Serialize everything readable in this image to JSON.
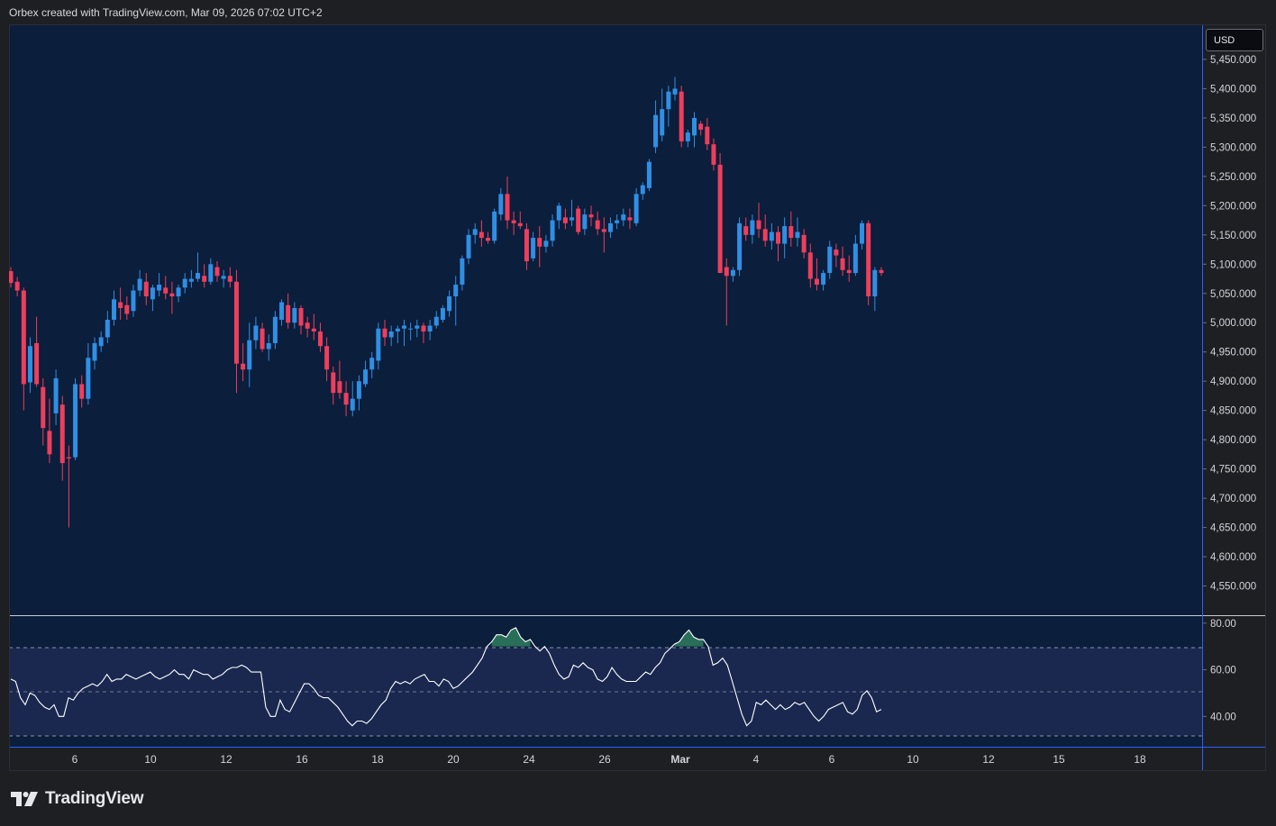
{
  "header": {
    "attribution": "Orbex created with TradingView.com, Mar 09, 2026 07:02 UTC+2"
  },
  "currency": "USD",
  "footer": {
    "brand_name": "TradingView",
    "logo_icon": "tradingview-logo-icon"
  },
  "colors": {
    "background": "#1e1f22",
    "plot_background": "#0b1e3b",
    "rsi_band": "#1a2850",
    "up_candle": "#2f8fe4",
    "down_candle": "#ef3e5c",
    "rsi_line": "#ffffff",
    "rsi_overbought_fill": "#2f7d5e",
    "text": "#d1d4dc",
    "axis_line": "#2962ff"
  },
  "chart_data": [
    {
      "type": "candlestick",
      "title": "",
      "currency": "USD",
      "ylim": [
        4500,
        5510
      ],
      "y_ticks": [
        "5,450.000",
        "5,400.000",
        "5,350.000",
        "5,300.000",
        "5,250.000",
        "5,200.000",
        "5,150.000",
        "5,100.000",
        "5,050.000",
        "5,000.000",
        "4,950.000",
        "4,900.000",
        "4,850.000",
        "4,800.000",
        "4,750.000",
        "4,700.000",
        "4,650.000",
        "4,600.000",
        "4,550.000"
      ],
      "x_ticks": [
        "6",
        "10",
        "12",
        "16",
        "18",
        "20",
        "24",
        "26",
        "Mar",
        "4",
        "6",
        "10",
        "12",
        "15",
        "18"
      ],
      "ohlc": [
        [
          5088,
          5095,
          5060,
          5068
        ],
        [
          5070,
          5078,
          5045,
          5055
        ],
        [
          5055,
          5060,
          4850,
          4895
        ],
        [
          4898,
          4975,
          4880,
          4960
        ],
        [
          4965,
          5010,
          4890,
          4895
        ],
        [
          4890,
          4905,
          4790,
          4820
        ],
        [
          4815,
          4870,
          4760,
          4775
        ],
        [
          4845,
          4920,
          4825,
          4905
        ],
        [
          4860,
          4875,
          4730,
          4760
        ],
        [
          4770,
          4790,
          4650,
          4768
        ],
        [
          4770,
          4905,
          4765,
          4895
        ],
        [
          4895,
          4910,
          4855,
          4870
        ],
        [
          4870,
          4965,
          4860,
          4940
        ],
        [
          4935,
          4975,
          4920,
          4965
        ],
        [
          4960,
          4985,
          4950,
          4975
        ],
        [
          4975,
          5020,
          4965,
          5005
        ],
        [
          5005,
          5055,
          4995,
          5040
        ],
        [
          5035,
          5060,
          5005,
          5025
        ],
        [
          5030,
          5045,
          5005,
          5015
        ],
        [
          5020,
          5065,
          5010,
          5055
        ],
        [
          5055,
          5090,
          5045,
          5075
        ],
        [
          5070,
          5085,
          5030,
          5045
        ],
        [
          5040,
          5065,
          5020,
          5060
        ],
        [
          5055,
          5085,
          5045,
          5065
        ],
        [
          5060,
          5080,
          5040,
          5050
        ],
        [
          5050,
          5070,
          5015,
          5045
        ],
        [
          5045,
          5065,
          5035,
          5060
        ],
        [
          5060,
          5085,
          5050,
          5075
        ],
        [
          5070,
          5090,
          5060,
          5075
        ],
        [
          5075,
          5120,
          5070,
          5085
        ],
        [
          5080,
          5100,
          5060,
          5070
        ],
        [
          5070,
          5110,
          5065,
          5100
        ],
        [
          5095,
          5105,
          5070,
          5080
        ],
        [
          5075,
          5090,
          5060,
          5080
        ],
        [
          5080,
          5095,
          5060,
          5070
        ],
        [
          5070,
          5090,
          4880,
          4930
        ],
        [
          4930,
          4965,
          4900,
          4920
        ],
        [
          4920,
          5000,
          4890,
          4970
        ],
        [
          4970,
          5010,
          4955,
          4995
        ],
        [
          4990,
          5000,
          4950,
          4955
        ],
        [
          4955,
          4980,
          4935,
          4965
        ],
        [
          4965,
          5020,
          4955,
          5010
        ],
        [
          5005,
          5040,
          4995,
          5035
        ],
        [
          5030,
          5050,
          4990,
          5000
        ],
        [
          5000,
          5035,
          4990,
          5025
        ],
        [
          5025,
          5030,
          4980,
          4995
        ],
        [
          5000,
          5010,
          4975,
          4990
        ],
        [
          4990,
          5015,
          4970,
          4985
        ],
        [
          4985,
          5000,
          4950,
          4960
        ],
        [
          4960,
          4975,
          4900,
          4920
        ],
        [
          4915,
          4925,
          4860,
          4880
        ],
        [
          4900,
          4935,
          4870,
          4880
        ],
        [
          4880,
          4900,
          4840,
          4860
        ],
        [
          4850,
          4900,
          4840,
          4870
        ],
        [
          4870,
          4910,
          4850,
          4900
        ],
        [
          4895,
          4935,
          4890,
          4920
        ],
        [
          4920,
          4950,
          4905,
          4940
        ],
        [
          4935,
          5000,
          4920,
          4990
        ],
        [
          4990,
          5005,
          4960,
          4975
        ],
        [
          4975,
          4995,
          4960,
          4985
        ],
        [
          4985,
          4995,
          4965,
          4990
        ],
        [
          4990,
          5005,
          4960,
          4995
        ],
        [
          4990,
          5000,
          4970,
          4990
        ],
        [
          4990,
          5005,
          4975,
          4995
        ],
        [
          4995,
          5000,
          4965,
          4985
        ],
        [
          4985,
          5005,
          4970,
          4995
        ],
        [
          4995,
          5020,
          4990,
          5010
        ],
        [
          5005,
          5030,
          5000,
          5025
        ],
        [
          5020,
          5055,
          5010,
          5045
        ],
        [
          5045,
          5080,
          4995,
          5065
        ],
        [
          5065,
          5115,
          5055,
          5110
        ],
        [
          5110,
          5160,
          5100,
          5150
        ],
        [
          5150,
          5170,
          5135,
          5160
        ],
        [
          5155,
          5175,
          5130,
          5145
        ],
        [
          5145,
          5155,
          5135,
          5140
        ],
        [
          5140,
          5195,
          5135,
          5190
        ],
        [
          5185,
          5230,
          5175,
          5220
        ],
        [
          5220,
          5250,
          5160,
          5175
        ],
        [
          5175,
          5190,
          5150,
          5170
        ],
        [
          5170,
          5190,
          5160,
          5165
        ],
        [
          5160,
          5170,
          5090,
          5105
        ],
        [
          5110,
          5155,
          5105,
          5145
        ],
        [
          5145,
          5165,
          5095,
          5130
        ],
        [
          5130,
          5150,
          5120,
          5140
        ],
        [
          5140,
          5185,
          5130,
          5175
        ],
        [
          5175,
          5205,
          5160,
          5200
        ],
        [
          5180,
          5195,
          5160,
          5170
        ],
        [
          5175,
          5210,
          5165,
          5180
        ],
        [
          5195,
          5200,
          5150,
          5155
        ],
        [
          5160,
          5195,
          5150,
          5185
        ],
        [
          5185,
          5200,
          5165,
          5180
        ],
        [
          5175,
          5190,
          5150,
          5160
        ],
        [
          5160,
          5180,
          5120,
          5155
        ],
        [
          5155,
          5180,
          5145,
          5170
        ],
        [
          5170,
          5185,
          5160,
          5175
        ],
        [
          5175,
          5195,
          5165,
          5185
        ],
        [
          5180,
          5195,
          5160,
          5175
        ],
        [
          5170,
          5230,
          5165,
          5220
        ],
        [
          5220,
          5240,
          5210,
          5235
        ],
        [
          5230,
          5280,
          5225,
          5275
        ],
        [
          5300,
          5380,
          5290,
          5355
        ],
        [
          5320,
          5400,
          5310,
          5365
        ],
        [
          5365,
          5405,
          5335,
          5395
        ],
        [
          5390,
          5420,
          5380,
          5400
        ],
        [
          5395,
          5405,
          5300,
          5310
        ],
        [
          5310,
          5330,
          5300,
          5325
        ],
        [
          5320,
          5360,
          5300,
          5350
        ],
        [
          5340,
          5345,
          5320,
          5330
        ],
        [
          5335,
          5350,
          5295,
          5305
        ],
        [
          5305,
          5315,
          5260,
          5270
        ],
        [
          5270,
          5290,
          5095,
          5085
        ],
        [
          5095,
          5110,
          4995,
          5080
        ],
        [
          5080,
          5095,
          5070,
          5090
        ],
        [
          5090,
          5180,
          5080,
          5170
        ],
        [
          5165,
          5180,
          5140,
          5150
        ],
        [
          5150,
          5185,
          5135,
          5175
        ],
        [
          5175,
          5205,
          5145,
          5160
        ],
        [
          5160,
          5185,
          5130,
          5140
        ],
        [
          5140,
          5170,
          5125,
          5155
        ],
        [
          5155,
          5165,
          5105,
          5135
        ],
        [
          5135,
          5180,
          5110,
          5165
        ],
        [
          5165,
          5190,
          5130,
          5145
        ],
        [
          5145,
          5180,
          5130,
          5155
        ],
        [
          5150,
          5160,
          5110,
          5120
        ],
        [
          5120,
          5135,
          5060,
          5075
        ],
        [
          5075,
          5110,
          5055,
          5065
        ],
        [
          5065,
          5090,
          5055,
          5085
        ],
        [
          5085,
          5140,
          5075,
          5130
        ],
        [
          5125,
          5135,
          5095,
          5115
        ],
        [
          5110,
          5130,
          5080,
          5090
        ],
        [
          5090,
          5115,
          5070,
          5085
        ],
        [
          5085,
          5150,
          5080,
          5135
        ],
        [
          5135,
          5175,
          5125,
          5170
        ],
        [
          5170,
          5175,
          5030,
          5045
        ],
        [
          5045,
          5095,
          5020,
          5090
        ],
        [
          5090,
          5095,
          5080,
          5085
        ]
      ]
    },
    {
      "type": "line",
      "name": "",
      "ylim": [
        27,
        83
      ],
      "y_ticks": [
        "80.00",
        "60.00",
        "40.00"
      ],
      "bands": {
        "upper": 70,
        "middle": 50,
        "lower": 30
      },
      "values": [
        56,
        55,
        48,
        45,
        50,
        49,
        46,
        44,
        43,
        45,
        40,
        40,
        48,
        47,
        50,
        52,
        53,
        54,
        53,
        55,
        58,
        55,
        56,
        56,
        58,
        57,
        56,
        57,
        58,
        59,
        57,
        56,
        57,
        58,
        60,
        58,
        58,
        56,
        60,
        59,
        58,
        58,
        56,
        57,
        58,
        60,
        61,
        61,
        62,
        61,
        59,
        59,
        59,
        44,
        40,
        40,
        47,
        43,
        42,
        46,
        50,
        54,
        54,
        52,
        49,
        48,
        48,
        46,
        44,
        41,
        38,
        36,
        38,
        38,
        37,
        39,
        42,
        45,
        47,
        52,
        55,
        54,
        55,
        54,
        56,
        57,
        58,
        55,
        55,
        53,
        56,
        55,
        52,
        53,
        55,
        57,
        59,
        62,
        65,
        70,
        72,
        75,
        75,
        74,
        77,
        78,
        74,
        72,
        73,
        70,
        68,
        70,
        67,
        62,
        58,
        56,
        57,
        62,
        61,
        63,
        61,
        60,
        56,
        55,
        57,
        61,
        58,
        56,
        55,
        55,
        55,
        57,
        59,
        58,
        61,
        63,
        67,
        69,
        71,
        72,
        75,
        77,
        74,
        73,
        73,
        70,
        62,
        63,
        65,
        62,
        55,
        48,
        41,
        36,
        38,
        46,
        45,
        47,
        45,
        43,
        45,
        43,
        44,
        46,
        45,
        46,
        43,
        40,
        38,
        40,
        43,
        44,
        45,
        46,
        42,
        41,
        43,
        49,
        51,
        48,
        42,
        43
      ]
    }
  ]
}
